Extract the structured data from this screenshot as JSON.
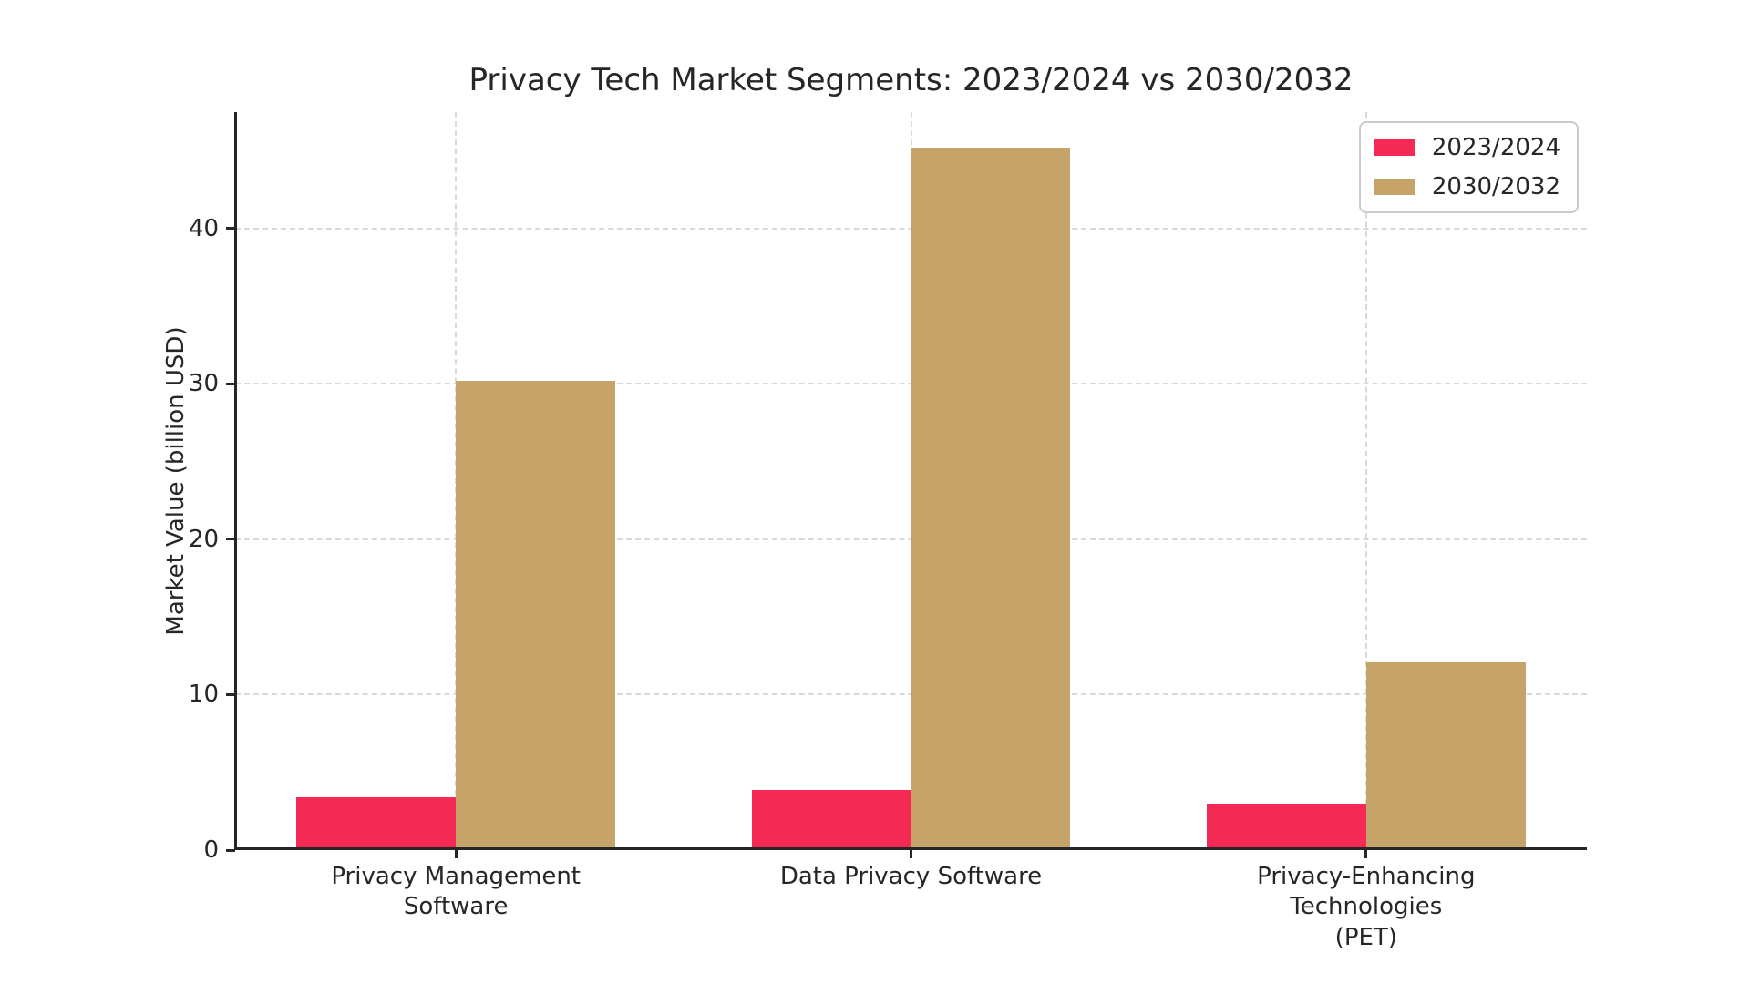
{
  "chart_data": {
    "type": "bar",
    "title": "Privacy Tech Market Segments: 2023/2024 vs 2030/2032",
    "xlabel": "",
    "ylabel": "Market Value (billion USD)",
    "categories": [
      "Privacy Management\nSoftware",
      "Data Privacy Software",
      "Privacy-Enhancing\nTechnologies (PET)"
    ],
    "series": [
      {
        "name": "2023/2024",
        "color": "#f42a55",
        "values": [
          3.4,
          3.9,
          3.0
        ]
      },
      {
        "name": "2030/2032",
        "color": "#c6a369",
        "values": [
          30.2,
          45.2,
          12.1
        ]
      }
    ],
    "ylim": [
      0,
      47.5
    ],
    "yticks": [
      0,
      10,
      20,
      30,
      40
    ],
    "grid": true,
    "grid_style": "dashed",
    "legend_position": "upper right",
    "bar_width_fraction": 0.35,
    "axis_color": "#262626",
    "grid_color": "#d8d8d8",
    "background_color": "#ffffff"
  }
}
